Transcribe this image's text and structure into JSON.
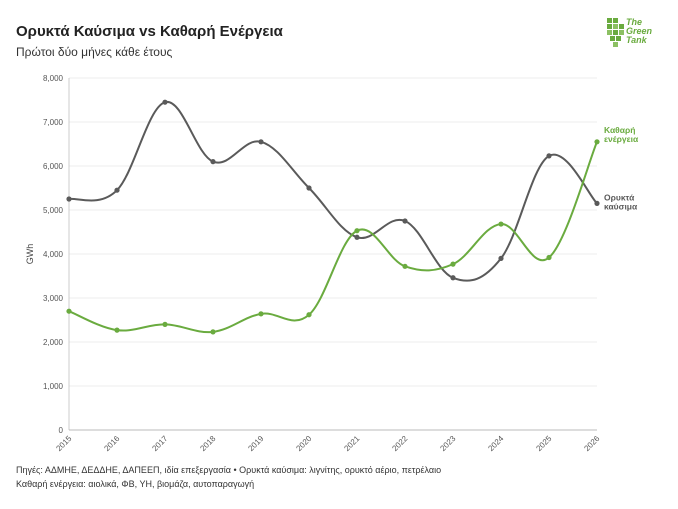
{
  "title": "Ορυκτά Καύσιμα vs Καθαρή Ενέργεια",
  "subtitle": "Πρώτοι δύο μήνες κάθε έτους",
  "logo": {
    "line1": "The",
    "line2": "Green",
    "line3": "Tank",
    "icon": "green-tank-logo-icon"
  },
  "footer": {
    "line1": "Πηγές: ΑΔΜΗΕ, ΔΕΔΔΗΕ, ΔΑΠΕΕΠ, ιδία επεξεργασία • Ορυκτά καύσιμα: λιγνίτης, ορυκτό αέριο, πετρέλαιο",
    "line2": "Καθαρή ενέργεια: αιολικά, ΦΒ, ΥΗ, βιομάζα, αυτοπαραγωγή"
  },
  "colors": {
    "fossil": "#5a5a5a",
    "clean": "#6aab3f",
    "grid": "#ececec"
  },
  "chart_data": {
    "type": "line",
    "title": "Ορυκτά Καύσιμα vs Καθαρή Ενέργεια",
    "subtitle": "Πρώτοι δύο μήνες κάθε έτους",
    "xlabel": "",
    "ylabel": "GWh",
    "ylim": [
      0,
      8000
    ],
    "yticks": [
      0,
      1000,
      2000,
      3000,
      4000,
      5000,
      6000,
      7000,
      8000
    ],
    "ytick_labels": [
      "0",
      "1,000",
      "2,000",
      "3,000",
      "4,000",
      "5,000",
      "6,000",
      "7,000",
      "8,000"
    ],
    "x": [
      "2015",
      "2016",
      "2017",
      "2018",
      "2019",
      "2020",
      "2021",
      "2022",
      "2023",
      "2024",
      "2025",
      "2026"
    ],
    "series": [
      {
        "name": "Ορυκτά καύσιμα",
        "label_lines": [
          "Ορυκτά",
          "καύσιμα"
        ],
        "color": "#5a5a5a",
        "values": [
          5250,
          5450,
          7450,
          6100,
          6550,
          5500,
          4380,
          4750,
          3460,
          3900,
          6230,
          5150
        ]
      },
      {
        "name": "Καθαρή ενέργεια",
        "label_lines": [
          "Καθαρή",
          "ενέργεια"
        ],
        "color": "#6aab3f",
        "values": [
          2700,
          2270,
          2400,
          2230,
          2640,
          2620,
          4530,
          3720,
          3770,
          4680,
          3920,
          6550
        ]
      }
    ],
    "grid": true,
    "legend": "end-labels-right"
  }
}
